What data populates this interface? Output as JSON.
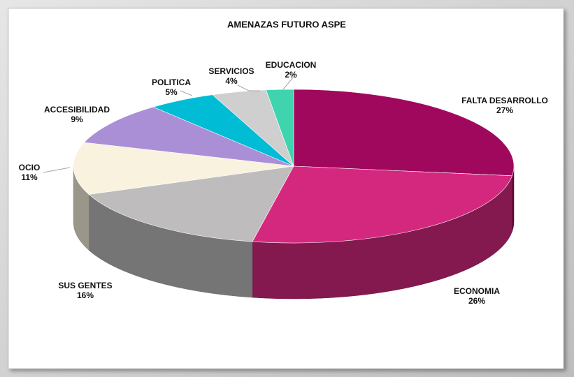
{
  "chart_data": {
    "type": "pie3d",
    "title": "AMENAZAS FUTURO ASPE",
    "categories": [
      "FALTA DESARROLLO",
      "ECONOMIA",
      "SUS GENTES",
      "OCIO",
      "ACCESIBILIDAD",
      "POLITICA",
      "SERVICIOS",
      "EDUCACION"
    ],
    "values": [
      27,
      26,
      16,
      11,
      9,
      5,
      4,
      2
    ],
    "value_labels": [
      "27%",
      "26%",
      "16%",
      "11%",
      "9%",
      "5%",
      "4%",
      "2%"
    ],
    "colors": [
      "#a0085e",
      "#d4287f",
      "#bebcbc",
      "#f8f2df",
      "#ab8fd6",
      "#00bcd4",
      "#cfcfcf",
      "#3fd4ae"
    ]
  }
}
